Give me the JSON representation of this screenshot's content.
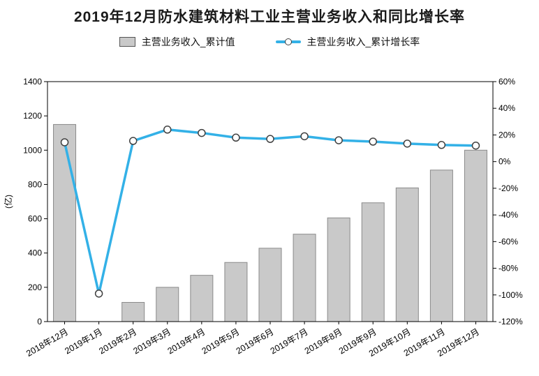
{
  "title": "2019年12月防水建筑材料工业主营业务收入和同比增长率",
  "legend": [
    {
      "label": "主营业务收入_累计值",
      "swatch": "gray-bar"
    },
    {
      "label": "主营业务收入_累计增长率",
      "swatch": "blue-line-circle-marker"
    }
  ],
  "colors": {
    "bar_fill": "#c9c9c9",
    "bar_stroke": "#8a8a8a",
    "line": "#33b1e7",
    "marker_fill": "#ffffff",
    "marker_stroke": "#404040",
    "axis": "#000000"
  },
  "chart_data": {
    "type": "bar+line",
    "title": "2019年12月防水建筑材料工业主营业务收入和同比增长率",
    "categories": [
      "2018年12月",
      "2019年1月",
      "2019年2月",
      "2019年3月",
      "2019年4月",
      "2019年5月",
      "2019年6月",
      "2019年7月",
      "2019年8月",
      "2019年9月",
      "2019年10月",
      "2019年11月",
      "2019年12月"
    ],
    "series": [
      {
        "name": "主营业务收入_累计值",
        "type": "bar",
        "axis": "left",
        "values": [
          1150,
          null,
          112,
          200,
          270,
          345,
          428,
          510,
          605,
          693,
          780,
          884,
          1000
        ]
      },
      {
        "name": "主营业务收入_累计增长率",
        "type": "line",
        "axis": "right",
        "values": [
          14.5,
          -99,
          15.5,
          24.0,
          21.5,
          18.0,
          17.0,
          19.0,
          16.0,
          15.0,
          13.5,
          12.5,
          12.0
        ]
      }
    ],
    "left_axis": {
      "label": "(亿)",
      "min": 0,
      "max": 1400,
      "step": 200
    },
    "right_axis": {
      "min": -120,
      "max": 60,
      "step": 20,
      "suffix": "%"
    },
    "grid": false,
    "legend_position": "top"
  }
}
